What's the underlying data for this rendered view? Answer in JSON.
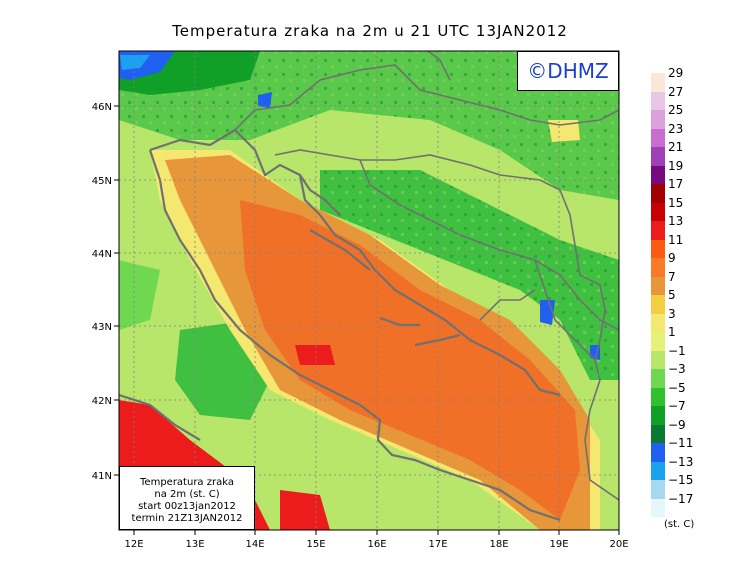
{
  "title": "Temperatura zraka na 2m u 21 UTC 13JAN2012",
  "logo_text": "©DHMZ",
  "info_box": {
    "line1": "Temperatura zraka",
    "line2": "na 2m (st. C)",
    "line3": "start 00z13jan2012",
    "line4": "termin 21Z13JAN2012"
  },
  "lon_ticks": [
    "12E",
    "13E",
    "14E",
    "15E",
    "16E",
    "17E",
    "18E",
    "19E",
    "20E"
  ],
  "lat_ticks": [
    "46N",
    "45N",
    "44N",
    "43N",
    "42N",
    "41N"
  ],
  "legend": {
    "unit": "(st. C)",
    "labels": [
      "29",
      "27",
      "25",
      "23",
      "21",
      "19",
      "17",
      "15",
      "13",
      "11",
      "9",
      "7",
      "5",
      "3",
      "1",
      "−1",
      "−3",
      "−5",
      "−7",
      "−9",
      "−11",
      "−13",
      "−15",
      "−17"
    ],
    "colors": [
      "#fbe7d8",
      "#e8c6e6",
      "#dca0de",
      "#c86cd0",
      "#a040b8",
      "#780a80",
      "#a00000",
      "#c80000",
      "#ec1c1c",
      "#fa5a12",
      "#fa7a28",
      "#e8963a",
      "#f0d040",
      "#f4e870",
      "#e6f07a",
      "#b8e66a",
      "#70d850",
      "#30c030",
      "#10a028",
      "#0a7a30",
      "#2060f0",
      "#1ca0f0",
      "#a8d8f0",
      "#e4f8fc"
    ]
  },
  "colors": {
    "sea_warm": "#f07028",
    "sea_mid": "#e8963a",
    "land_green": "#40c040",
    "land_light": "#b8e66a",
    "coast": "#707070"
  }
}
